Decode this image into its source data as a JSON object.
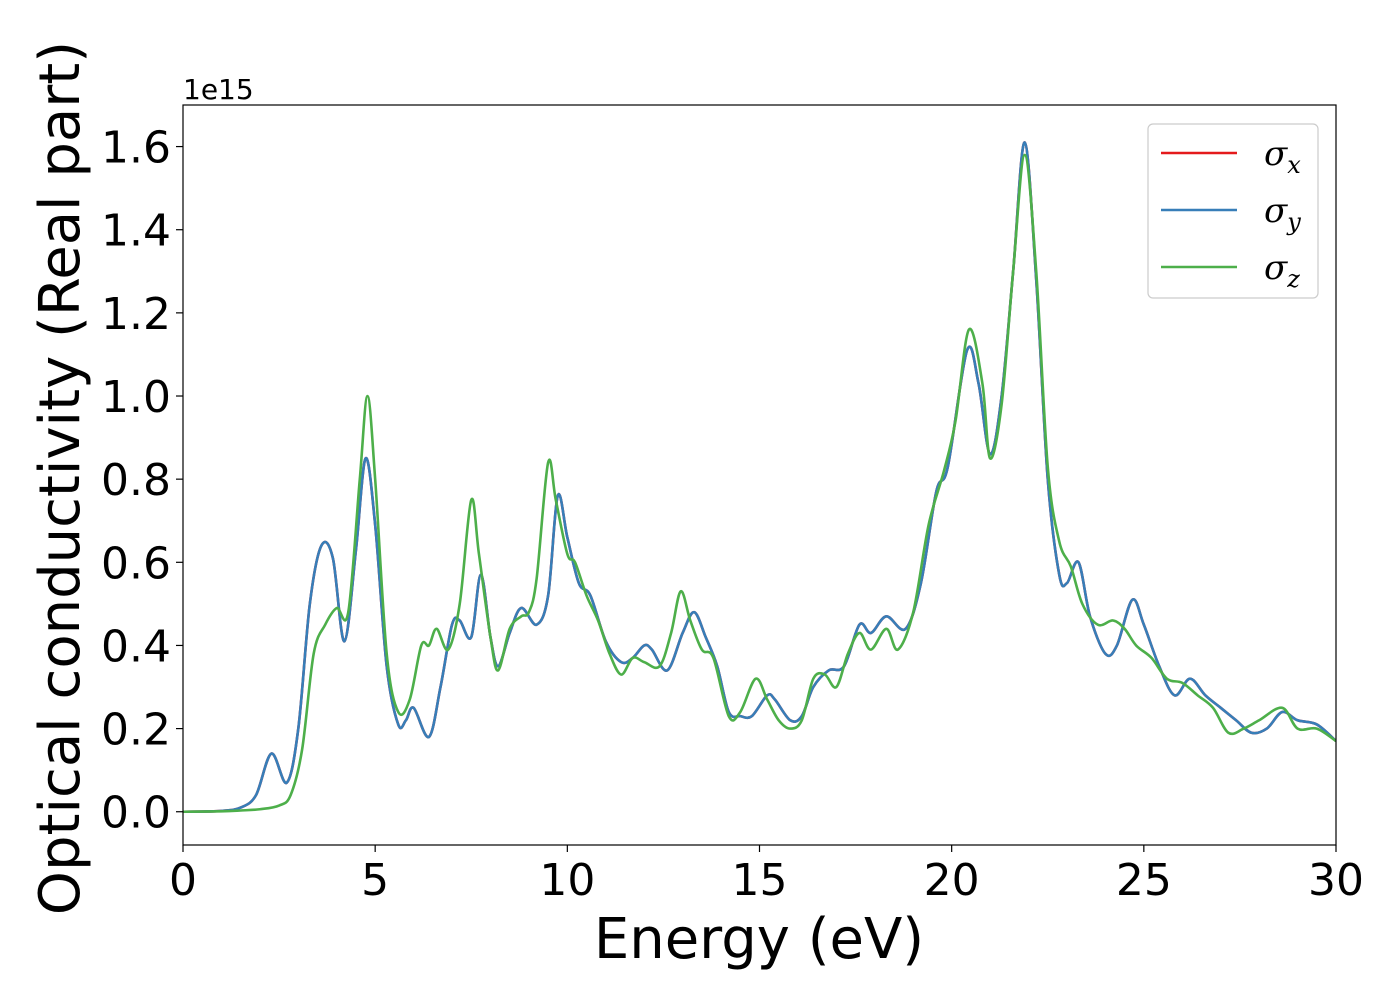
{
  "chart_data": {
    "type": "line",
    "xlabel": "Energy (eV)",
    "ylabel": "Optical conductivity (Real part)",
    "y_offset_text": "1e15",
    "y_scale_factor": 1000000000000000.0,
    "xlim": [
      0,
      30
    ],
    "ylim": [
      -0.08,
      1.7
    ],
    "xticks": [
      0,
      5,
      10,
      15,
      20,
      25,
      30
    ],
    "xtick_labels": [
      "0",
      "5",
      "10",
      "15",
      "20",
      "25",
      "30"
    ],
    "yticks": [
      0.0,
      0.2,
      0.4,
      0.6,
      0.8,
      1.0,
      1.2,
      1.4,
      1.6
    ],
    "ytick_labels": [
      "0.0",
      "0.2",
      "0.4",
      "0.6",
      "0.8",
      "1.0",
      "1.2",
      "1.4",
      "1.6"
    ],
    "grid": false,
    "legend": {
      "placement": "top-right",
      "entries": [
        {
          "symbol": "σ",
          "sub": "x",
          "color": "#e41a1c"
        },
        {
          "symbol": "σ",
          "sub": "y",
          "color": "#377eb8"
        },
        {
          "symbol": "σ",
          "sub": "z",
          "color": "#4daf4a"
        }
      ]
    },
    "series": [
      {
        "color": "#e41a1c",
        "points": [
          [
            0,
            0
          ],
          [
            1,
            0.002
          ],
          [
            1.5,
            0.01
          ],
          [
            1.9,
            0.04
          ],
          [
            2.3,
            0.14
          ],
          [
            2.7,
            0.07
          ],
          [
            3.0,
            0.2
          ],
          [
            3.3,
            0.5
          ],
          [
            3.6,
            0.64
          ],
          [
            3.9,
            0.61
          ],
          [
            4.2,
            0.41
          ],
          [
            4.5,
            0.63
          ],
          [
            4.75,
            0.85
          ],
          [
            5.0,
            0.69
          ],
          [
            5.3,
            0.35
          ],
          [
            5.6,
            0.21
          ],
          [
            5.8,
            0.22
          ],
          [
            6.0,
            0.25
          ],
          [
            6.4,
            0.18
          ],
          [
            6.7,
            0.3
          ],
          [
            7.0,
            0.45
          ],
          [
            7.2,
            0.46
          ],
          [
            7.5,
            0.42
          ],
          [
            7.75,
            0.57
          ],
          [
            8.0,
            0.42
          ],
          [
            8.2,
            0.35
          ],
          [
            8.5,
            0.43
          ],
          [
            8.8,
            0.49
          ],
          [
            9.2,
            0.45
          ],
          [
            9.5,
            0.52
          ],
          [
            9.75,
            0.76
          ],
          [
            10.0,
            0.66
          ],
          [
            10.3,
            0.55
          ],
          [
            10.6,
            0.52
          ],
          [
            11.0,
            0.41
          ],
          [
            11.4,
            0.36
          ],
          [
            11.7,
            0.37
          ],
          [
            12.0,
            0.4
          ],
          [
            12.2,
            0.39
          ],
          [
            12.6,
            0.34
          ],
          [
            13.0,
            0.43
          ],
          [
            13.3,
            0.48
          ],
          [
            13.6,
            0.42
          ],
          [
            13.9,
            0.35
          ],
          [
            14.2,
            0.24
          ],
          [
            14.5,
            0.23
          ],
          [
            14.8,
            0.23
          ],
          [
            15.2,
            0.28
          ],
          [
            15.4,
            0.27
          ],
          [
            15.8,
            0.22
          ],
          [
            16.1,
            0.23
          ],
          [
            16.4,
            0.3
          ],
          [
            16.8,
            0.34
          ],
          [
            17.2,
            0.35
          ],
          [
            17.6,
            0.45
          ],
          [
            17.9,
            0.43
          ],
          [
            18.3,
            0.47
          ],
          [
            18.8,
            0.44
          ],
          [
            19.2,
            0.55
          ],
          [
            19.6,
            0.77
          ],
          [
            19.9,
            0.83
          ],
          [
            20.4,
            1.11
          ],
          [
            20.7,
            1.03
          ],
          [
            21.0,
            0.86
          ],
          [
            21.3,
            1.0
          ],
          [
            21.6,
            1.3
          ],
          [
            21.9,
            1.61
          ],
          [
            22.2,
            1.28
          ],
          [
            22.5,
            0.8
          ],
          [
            22.8,
            0.57
          ],
          [
            23.0,
            0.55
          ],
          [
            23.3,
            0.6
          ],
          [
            23.6,
            0.47
          ],
          [
            24.0,
            0.38
          ],
          [
            24.3,
            0.4
          ],
          [
            24.7,
            0.51
          ],
          [
            25.0,
            0.45
          ],
          [
            25.4,
            0.35
          ],
          [
            25.8,
            0.28
          ],
          [
            26.2,
            0.32
          ],
          [
            26.6,
            0.28
          ],
          [
            27.0,
            0.25
          ],
          [
            27.4,
            0.22
          ],
          [
            27.8,
            0.19
          ],
          [
            28.2,
            0.2
          ],
          [
            28.6,
            0.24
          ],
          [
            29.0,
            0.22
          ],
          [
            29.5,
            0.21
          ],
          [
            30,
            0.17
          ]
        ]
      },
      {
        "color": "#377eb8",
        "points": [
          [
            0,
            0
          ],
          [
            1,
            0.002
          ],
          [
            1.5,
            0.01
          ],
          [
            1.9,
            0.04
          ],
          [
            2.3,
            0.14
          ],
          [
            2.7,
            0.07
          ],
          [
            3.0,
            0.2
          ],
          [
            3.3,
            0.5
          ],
          [
            3.6,
            0.64
          ],
          [
            3.9,
            0.61
          ],
          [
            4.2,
            0.41
          ],
          [
            4.5,
            0.63
          ],
          [
            4.75,
            0.85
          ],
          [
            5.0,
            0.69
          ],
          [
            5.3,
            0.35
          ],
          [
            5.6,
            0.21
          ],
          [
            5.8,
            0.22
          ],
          [
            6.0,
            0.25
          ],
          [
            6.4,
            0.18
          ],
          [
            6.7,
            0.3
          ],
          [
            7.0,
            0.45
          ],
          [
            7.2,
            0.46
          ],
          [
            7.5,
            0.42
          ],
          [
            7.75,
            0.57
          ],
          [
            8.0,
            0.42
          ],
          [
            8.2,
            0.35
          ],
          [
            8.5,
            0.43
          ],
          [
            8.8,
            0.49
          ],
          [
            9.2,
            0.45
          ],
          [
            9.5,
            0.52
          ],
          [
            9.75,
            0.76
          ],
          [
            10.0,
            0.66
          ],
          [
            10.3,
            0.55
          ],
          [
            10.6,
            0.52
          ],
          [
            11.0,
            0.41
          ],
          [
            11.4,
            0.36
          ],
          [
            11.7,
            0.37
          ],
          [
            12.0,
            0.4
          ],
          [
            12.2,
            0.39
          ],
          [
            12.6,
            0.34
          ],
          [
            13.0,
            0.43
          ],
          [
            13.3,
            0.48
          ],
          [
            13.6,
            0.42
          ],
          [
            13.9,
            0.35
          ],
          [
            14.2,
            0.24
          ],
          [
            14.5,
            0.23
          ],
          [
            14.8,
            0.23
          ],
          [
            15.2,
            0.28
          ],
          [
            15.4,
            0.27
          ],
          [
            15.8,
            0.22
          ],
          [
            16.1,
            0.23
          ],
          [
            16.4,
            0.3
          ],
          [
            16.8,
            0.34
          ],
          [
            17.2,
            0.35
          ],
          [
            17.6,
            0.45
          ],
          [
            17.9,
            0.43
          ],
          [
            18.3,
            0.47
          ],
          [
            18.8,
            0.44
          ],
          [
            19.2,
            0.55
          ],
          [
            19.6,
            0.77
          ],
          [
            19.9,
            0.83
          ],
          [
            20.4,
            1.11
          ],
          [
            20.7,
            1.03
          ],
          [
            21.0,
            0.86
          ],
          [
            21.3,
            1.0
          ],
          [
            21.6,
            1.3
          ],
          [
            21.9,
            1.61
          ],
          [
            22.2,
            1.28
          ],
          [
            22.5,
            0.8
          ],
          [
            22.8,
            0.57
          ],
          [
            23.0,
            0.55
          ],
          [
            23.3,
            0.6
          ],
          [
            23.6,
            0.47
          ],
          [
            24.0,
            0.38
          ],
          [
            24.3,
            0.4
          ],
          [
            24.7,
            0.51
          ],
          [
            25.0,
            0.45
          ],
          [
            25.4,
            0.35
          ],
          [
            25.8,
            0.28
          ],
          [
            26.2,
            0.32
          ],
          [
            26.6,
            0.28
          ],
          [
            27.0,
            0.25
          ],
          [
            27.4,
            0.22
          ],
          [
            27.8,
            0.19
          ],
          [
            28.2,
            0.2
          ],
          [
            28.6,
            0.24
          ],
          [
            29.0,
            0.22
          ],
          [
            29.5,
            0.21
          ],
          [
            30,
            0.17
          ]
        ]
      },
      {
        "color": "#4daf4a",
        "points": [
          [
            0,
            0
          ],
          [
            1,
            0.001
          ],
          [
            1.5,
            0.003
          ],
          [
            2.0,
            0.006
          ],
          [
            2.5,
            0.015
          ],
          [
            2.8,
            0.04
          ],
          [
            3.1,
            0.15
          ],
          [
            3.4,
            0.38
          ],
          [
            3.7,
            0.45
          ],
          [
            4.0,
            0.49
          ],
          [
            4.3,
            0.48
          ],
          [
            4.6,
            0.8
          ],
          [
            4.8,
            1.0
          ],
          [
            5.0,
            0.8
          ],
          [
            5.3,
            0.38
          ],
          [
            5.6,
            0.24
          ],
          [
            5.9,
            0.27
          ],
          [
            6.2,
            0.4
          ],
          [
            6.4,
            0.4
          ],
          [
            6.6,
            0.44
          ],
          [
            6.9,
            0.39
          ],
          [
            7.2,
            0.5
          ],
          [
            7.5,
            0.75
          ],
          [
            7.7,
            0.62
          ],
          [
            8.0,
            0.42
          ],
          [
            8.2,
            0.34
          ],
          [
            8.5,
            0.44
          ],
          [
            8.8,
            0.47
          ],
          [
            9.0,
            0.48
          ],
          [
            9.2,
            0.56
          ],
          [
            9.5,
            0.84
          ],
          [
            9.7,
            0.75
          ],
          [
            10.0,
            0.62
          ],
          [
            10.2,
            0.6
          ],
          [
            10.5,
            0.52
          ],
          [
            10.8,
            0.46
          ],
          [
            11.1,
            0.38
          ],
          [
            11.4,
            0.33
          ],
          [
            11.7,
            0.37
          ],
          [
            12.0,
            0.36
          ],
          [
            12.4,
            0.35
          ],
          [
            12.7,
            0.43
          ],
          [
            12.95,
            0.53
          ],
          [
            13.2,
            0.46
          ],
          [
            13.5,
            0.39
          ],
          [
            13.8,
            0.37
          ],
          [
            14.2,
            0.23
          ],
          [
            14.5,
            0.24
          ],
          [
            14.9,
            0.32
          ],
          [
            15.2,
            0.27
          ],
          [
            15.5,
            0.22
          ],
          [
            15.8,
            0.2
          ],
          [
            16.1,
            0.22
          ],
          [
            16.4,
            0.32
          ],
          [
            16.7,
            0.33
          ],
          [
            17.0,
            0.3
          ],
          [
            17.3,
            0.38
          ],
          [
            17.6,
            0.43
          ],
          [
            17.9,
            0.39
          ],
          [
            18.3,
            0.44
          ],
          [
            18.6,
            0.39
          ],
          [
            19.0,
            0.48
          ],
          [
            19.4,
            0.69
          ],
          [
            19.8,
            0.82
          ],
          [
            20.1,
            0.94
          ],
          [
            20.45,
            1.16
          ],
          [
            20.8,
            1.03
          ],
          [
            21.0,
            0.85
          ],
          [
            21.3,
            0.98
          ],
          [
            21.6,
            1.3
          ],
          [
            21.9,
            1.58
          ],
          [
            22.2,
            1.3
          ],
          [
            22.5,
            0.83
          ],
          [
            22.8,
            0.65
          ],
          [
            23.1,
            0.59
          ],
          [
            23.4,
            0.5
          ],
          [
            23.8,
            0.45
          ],
          [
            24.2,
            0.46
          ],
          [
            24.5,
            0.44
          ],
          [
            24.8,
            0.4
          ],
          [
            25.2,
            0.37
          ],
          [
            25.6,
            0.32
          ],
          [
            26.0,
            0.31
          ],
          [
            26.4,
            0.28
          ],
          [
            26.8,
            0.25
          ],
          [
            27.2,
            0.19
          ],
          [
            27.6,
            0.2
          ],
          [
            28.0,
            0.22
          ],
          [
            28.6,
            0.25
          ],
          [
            29.0,
            0.2
          ],
          [
            29.5,
            0.2
          ],
          [
            30,
            0.17
          ]
        ]
      }
    ]
  }
}
